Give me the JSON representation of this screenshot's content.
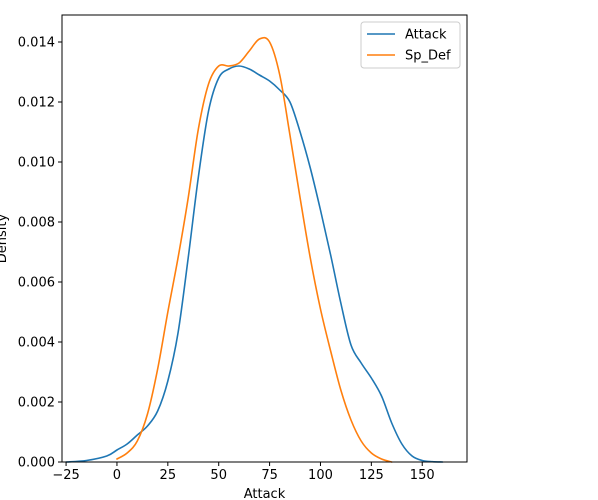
{
  "chart_data": {
    "type": "line",
    "title": "",
    "xlabel": "Attack",
    "ylabel": "Density",
    "xlim": [
      -27,
      172
    ],
    "ylim": [
      0,
      0.0149
    ],
    "x_ticks": [
      -25,
      0,
      25,
      50,
      75,
      100,
      125,
      150
    ],
    "y_ticks": [
      0.0,
      0.002,
      0.004,
      0.006,
      0.008,
      0.01,
      0.012,
      0.014
    ],
    "y_tick_labels": [
      "0.000",
      "0.002",
      "0.004",
      "0.006",
      "0.008",
      "0.010",
      "0.012",
      "0.014"
    ],
    "grid": false,
    "legend": "top-right",
    "series": [
      {
        "name": "Attack",
        "color": "#1f77b4",
        "x": [
          -25,
          -15,
          -5,
          0,
          5,
          10,
          15,
          20,
          25,
          30,
          35,
          40,
          45,
          50,
          55,
          60,
          65,
          70,
          75,
          80,
          85,
          90,
          95,
          100,
          105,
          110,
          115,
          120,
          125,
          130,
          135,
          140,
          145,
          150,
          155,
          160
        ],
        "y": [
          0.0,
          5e-05,
          0.0002,
          0.0004,
          0.0006,
          0.0009,
          0.0012,
          0.0017,
          0.0027,
          0.0043,
          0.0068,
          0.0095,
          0.0117,
          0.0128,
          0.0131,
          0.0132,
          0.0131,
          0.0129,
          0.0127,
          0.0124,
          0.012,
          0.011,
          0.0098,
          0.0084,
          0.0069,
          0.0053,
          0.0039,
          0.0033,
          0.0028,
          0.0022,
          0.0013,
          0.0006,
          0.0002,
          5e-05,
          1e-05,
          0.0
        ]
      },
      {
        "name": "Sp_Def",
        "color": "#ff7f0e",
        "x": [
          0,
          5,
          10,
          15,
          20,
          25,
          30,
          35,
          40,
          45,
          50,
          55,
          60,
          65,
          70,
          75,
          80,
          85,
          90,
          95,
          100,
          105,
          110,
          115,
          120,
          125,
          130,
          135
        ],
        "y": [
          0.0001,
          0.0003,
          0.0007,
          0.0016,
          0.0031,
          0.005,
          0.0068,
          0.0088,
          0.0111,
          0.0126,
          0.0132,
          0.0132,
          0.0133,
          0.0137,
          0.0141,
          0.014,
          0.0129,
          0.0109,
          0.0088,
          0.0068,
          0.0051,
          0.0037,
          0.0024,
          0.0014,
          0.0007,
          0.0003,
          0.0001,
          0.0
        ]
      }
    ]
  }
}
